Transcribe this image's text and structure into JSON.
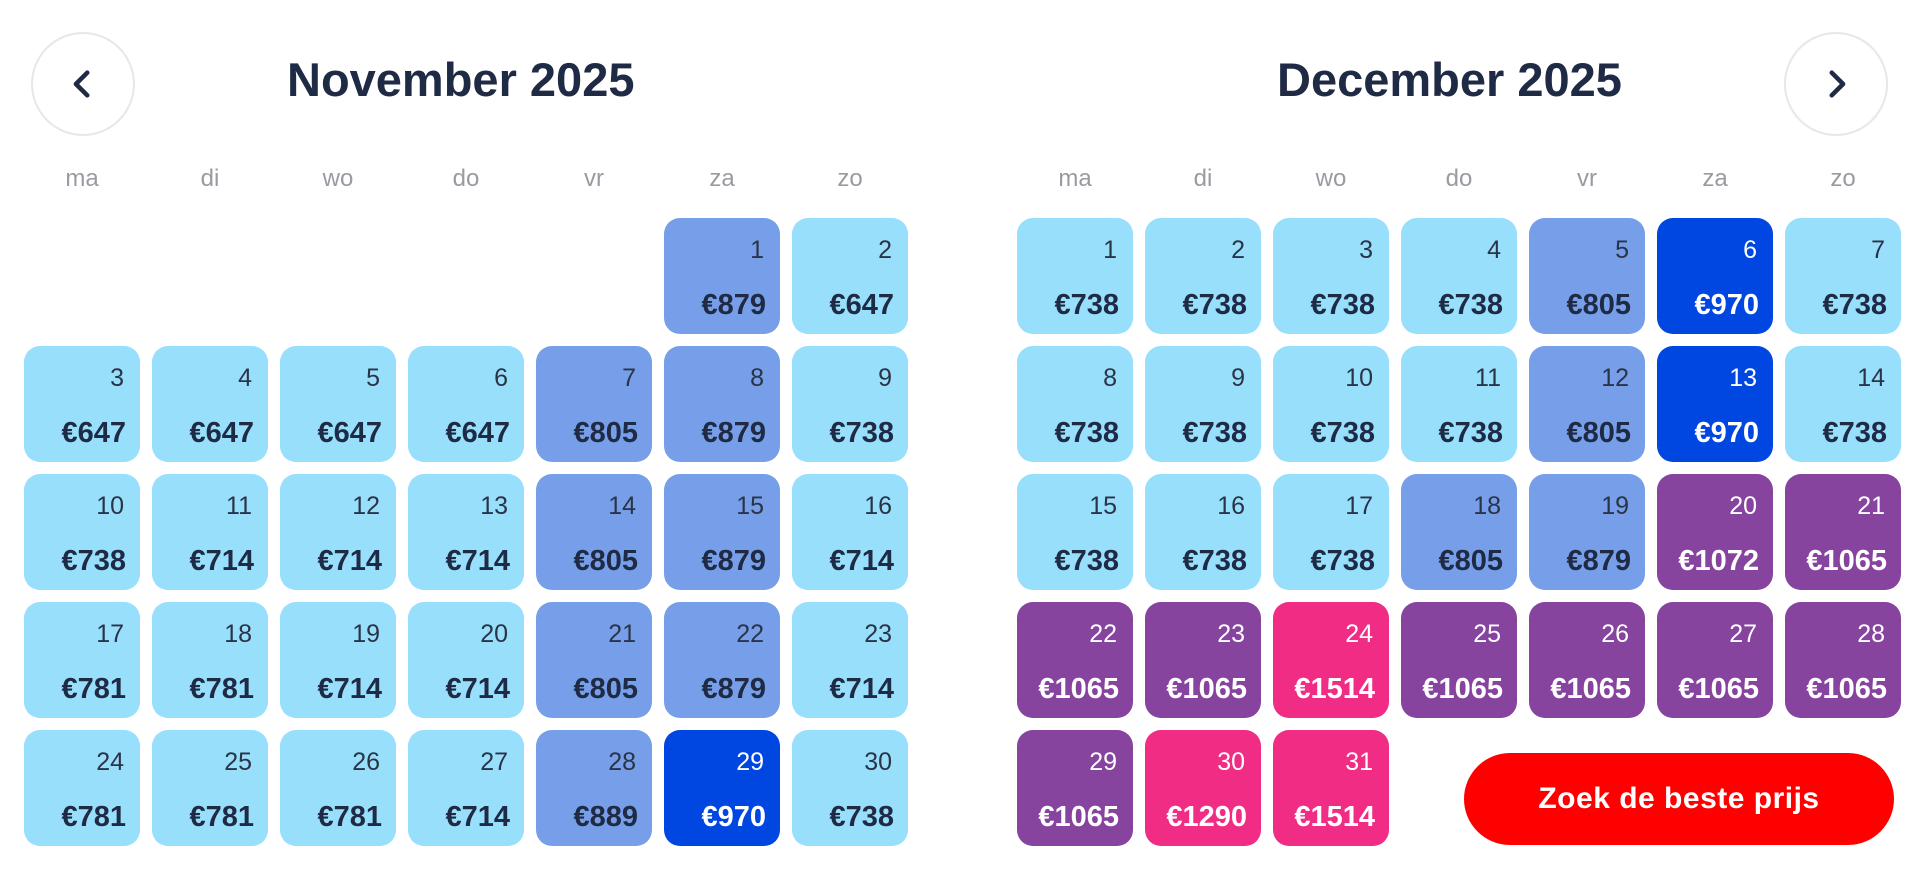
{
  "navigation": {
    "prev_icon": "chevron-left-icon",
    "next_icon": "chevron-right-icon"
  },
  "weekdays": [
    "ma",
    "di",
    "wo",
    "do",
    "vr",
    "za",
    "zo"
  ],
  "months": [
    {
      "title": "November 2025",
      "start_offset": 5,
      "days": [
        {
          "day": "1",
          "price": "€879",
          "level": "mid"
        },
        {
          "day": "2",
          "price": "€647",
          "level": "light"
        },
        {
          "day": "3",
          "price": "€647",
          "level": "light"
        },
        {
          "day": "4",
          "price": "€647",
          "level": "light"
        },
        {
          "day": "5",
          "price": "€647",
          "level": "light"
        },
        {
          "day": "6",
          "price": "€647",
          "level": "light"
        },
        {
          "day": "7",
          "price": "€805",
          "level": "mid"
        },
        {
          "day": "8",
          "price": "€879",
          "level": "mid"
        },
        {
          "day": "9",
          "price": "€738",
          "level": "light"
        },
        {
          "day": "10",
          "price": "€738",
          "level": "light"
        },
        {
          "day": "11",
          "price": "€714",
          "level": "light"
        },
        {
          "day": "12",
          "price": "€714",
          "level": "light"
        },
        {
          "day": "13",
          "price": "€714",
          "level": "light"
        },
        {
          "day": "14",
          "price": "€805",
          "level": "mid"
        },
        {
          "day": "15",
          "price": "€879",
          "level": "mid"
        },
        {
          "day": "16",
          "price": "€714",
          "level": "light"
        },
        {
          "day": "17",
          "price": "€781",
          "level": "light"
        },
        {
          "day": "18",
          "price": "€781",
          "level": "light"
        },
        {
          "day": "19",
          "price": "€714",
          "level": "light"
        },
        {
          "day": "20",
          "price": "€714",
          "level": "light"
        },
        {
          "day": "21",
          "price": "€805",
          "level": "mid"
        },
        {
          "day": "22",
          "price": "€879",
          "level": "mid"
        },
        {
          "day": "23",
          "price": "€714",
          "level": "light"
        },
        {
          "day": "24",
          "price": "€781",
          "level": "light"
        },
        {
          "day": "25",
          "price": "€781",
          "level": "light"
        },
        {
          "day": "26",
          "price": "€781",
          "level": "light"
        },
        {
          "day": "27",
          "price": "€714",
          "level": "light"
        },
        {
          "day": "28",
          "price": "€889",
          "level": "mid"
        },
        {
          "day": "29",
          "price": "€970",
          "level": "dark"
        },
        {
          "day": "30",
          "price": "€738",
          "level": "light"
        }
      ]
    },
    {
      "title": "December 2025",
      "start_offset": 0,
      "days": [
        {
          "day": "1",
          "price": "€738",
          "level": "light"
        },
        {
          "day": "2",
          "price": "€738",
          "level": "light"
        },
        {
          "day": "3",
          "price": "€738",
          "level": "light"
        },
        {
          "day": "4",
          "price": "€738",
          "level": "light"
        },
        {
          "day": "5",
          "price": "€805",
          "level": "mid"
        },
        {
          "day": "6",
          "price": "€970",
          "level": "dark"
        },
        {
          "day": "7",
          "price": "€738",
          "level": "light"
        },
        {
          "day": "8",
          "price": "€738",
          "level": "light"
        },
        {
          "day": "9",
          "price": "€738",
          "level": "light"
        },
        {
          "day": "10",
          "price": "€738",
          "level": "light"
        },
        {
          "day": "11",
          "price": "€738",
          "level": "light"
        },
        {
          "day": "12",
          "price": "€805",
          "level": "mid"
        },
        {
          "day": "13",
          "price": "€970",
          "level": "dark"
        },
        {
          "day": "14",
          "price": "€738",
          "level": "light"
        },
        {
          "day": "15",
          "price": "€738",
          "level": "light"
        },
        {
          "day": "16",
          "price": "€738",
          "level": "light"
        },
        {
          "day": "17",
          "price": "€738",
          "level": "light"
        },
        {
          "day": "18",
          "price": "€805",
          "level": "mid"
        },
        {
          "day": "19",
          "price": "€879",
          "level": "mid"
        },
        {
          "day": "20",
          "price": "€1072",
          "level": "purple"
        },
        {
          "day": "21",
          "price": "€1065",
          "level": "purple"
        },
        {
          "day": "22",
          "price": "€1065",
          "level": "purple"
        },
        {
          "day": "23",
          "price": "€1065",
          "level": "purple"
        },
        {
          "day": "24",
          "price": "€1514",
          "level": "pink"
        },
        {
          "day": "25",
          "price": "€1065",
          "level": "purple"
        },
        {
          "day": "26",
          "price": "€1065",
          "level": "purple"
        },
        {
          "day": "27",
          "price": "€1065",
          "level": "purple"
        },
        {
          "day": "28",
          "price": "€1065",
          "level": "purple"
        },
        {
          "day": "29",
          "price": "€1065",
          "level": "purple"
        },
        {
          "day": "30",
          "price": "€1290",
          "level": "pink"
        },
        {
          "day": "31",
          "price": "€1514",
          "level": "pink"
        }
      ]
    }
  ],
  "search_button": {
    "label": "Zoek de beste prijs"
  },
  "colors": {
    "light": "#98dffb",
    "mid": "#779ee8",
    "dark": "#0046e0",
    "purple": "#86449f",
    "pink": "#f02c85",
    "search_button": "#ff0000",
    "title_text": "#1f2a44"
  }
}
